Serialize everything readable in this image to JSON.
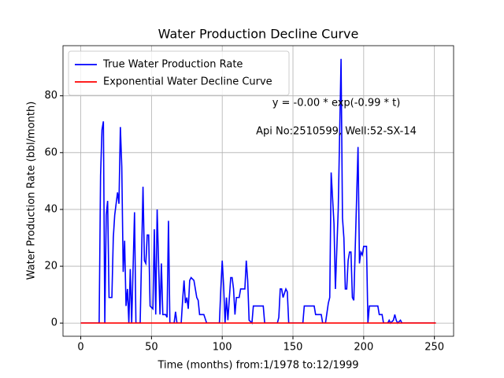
{
  "chart_data": {
    "type": "line",
    "title": "Water Production Decline Curve",
    "xlabel": "Time (months) from:1/1978 to:12/1999",
    "ylabel": "Water Production Rate (bbl/month)",
    "annotations": [
      "y = -0.00 * exp(-0.99 * t)",
      "Api No:2510599, Well:52-SX-14"
    ],
    "xlim": [
      -12.55,
      263.55
    ],
    "ylim": [
      -4.65,
      97.65
    ],
    "xticks": [
      0,
      50,
      100,
      150,
      200,
      250
    ],
    "yticks": [
      0,
      20,
      40,
      60,
      80
    ],
    "grid": true,
    "legend": "upper left",
    "series": [
      {
        "name": "True Water Production Rate",
        "color": "#0000ff",
        "x": [
          0,
          13,
          14,
          15,
          16,
          17,
          18,
          19,
          20,
          22,
          23,
          24,
          26,
          27,
          28,
          29,
          30,
          31,
          32,
          33,
          34,
          35,
          36,
          38,
          39,
          42,
          44,
          45,
          46,
          47,
          48,
          49,
          51,
          52,
          53,
          54,
          56,
          57,
          58,
          60,
          61,
          62,
          63,
          66,
          67,
          68,
          71,
          72,
          73,
          74,
          75,
          76,
          77,
          78,
          80,
          82,
          83,
          84,
          87,
          89,
          98,
          99,
          100,
          101,
          102,
          103,
          104,
          106,
          107,
          108,
          109,
          110,
          112,
          113,
          116,
          117,
          118,
          119,
          121,
          122,
          129,
          130,
          139,
          140,
          141,
          142,
          143,
          145,
          146,
          147,
          157,
          158,
          165,
          166,
          170,
          171,
          173,
          175,
          176,
          177,
          178,
          179,
          180,
          182,
          184,
          185,
          186,
          187,
          188,
          189,
          190,
          191,
          192,
          193,
          196,
          197,
          198,
          199,
          200,
          202,
          203,
          204,
          210,
          211,
          213,
          214,
          217,
          218,
          219,
          221,
          222,
          223,
          224,
          226,
          227,
          251
        ],
        "values": [
          0,
          0,
          52,
          68,
          71,
          0,
          38,
          43,
          9,
          9,
          30,
          38,
          46,
          42,
          69,
          55,
          18,
          29,
          6,
          12,
          0,
          19,
          0,
          39,
          0,
          0,
          48,
          22,
          21,
          31,
          31,
          6,
          5,
          33,
          3,
          40,
          3,
          21,
          3,
          3,
          2,
          36,
          0,
          0,
          4,
          0,
          0,
          8,
          15,
          7,
          9,
          5,
          15,
          16,
          15,
          9,
          8,
          3,
          3,
          0,
          0,
          12,
          22,
          13,
          0,
          9,
          1,
          16,
          16,
          12,
          3,
          9,
          9,
          12,
          12,
          22,
          15,
          1,
          0,
          6,
          6,
          0,
          0,
          2,
          12,
          12,
          9,
          12,
          11,
          0,
          0,
          6,
          6,
          3,
          3,
          0,
          0,
          7,
          9,
          53,
          44,
          35,
          12,
          40,
          93,
          37,
          30,
          12,
          12,
          22,
          25,
          25,
          9,
          8,
          62,
          21,
          25,
          24,
          27,
          27,
          0,
          6,
          6,
          3,
          3,
          0,
          0,
          1,
          0,
          1,
          3,
          1,
          0,
          1,
          0,
          0
        ]
      },
      {
        "name": "Exponential Water Decline Curve",
        "color": "#ff0000",
        "x": [
          0,
          251
        ],
        "values": [
          0,
          0
        ]
      }
    ]
  }
}
